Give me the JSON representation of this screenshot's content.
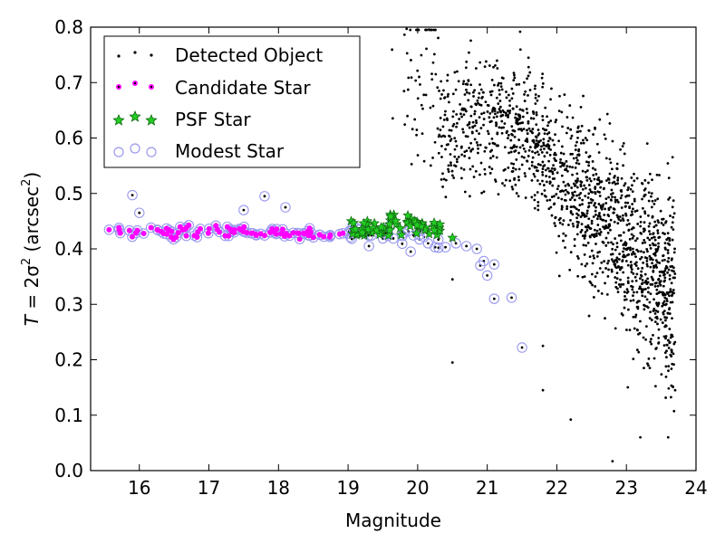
{
  "chart_data": {
    "type": "scatter",
    "xlabel": "Magnitude",
    "ylabel": "T = 2σ² (arcsec²)",
    "xlim": [
      15.3,
      24
    ],
    "ylim": [
      0.0,
      0.8
    ],
    "xticks": [
      16,
      17,
      18,
      19,
      20,
      21,
      22,
      23,
      24
    ],
    "yticks": [
      0.0,
      0.1,
      0.2,
      0.3,
      0.4,
      0.5,
      0.6,
      0.7,
      0.8
    ],
    "grid": false,
    "legend_position": "top-left",
    "series": [
      {
        "name": "Detected Object",
        "marker": "dot",
        "color": "#000000",
        "points_sample": [
          [
            15.6,
            0.435
          ],
          [
            15.9,
            0.497
          ],
          [
            16.2,
            0.43
          ],
          [
            17.5,
            0.47
          ],
          [
            17.8,
            0.495
          ],
          [
            19.3,
            0.405
          ],
          [
            19.9,
            0.395
          ],
          [
            20.5,
            0.345
          ],
          [
            20.5,
            0.195
          ],
          [
            20.9,
            0.37
          ],
          [
            21.1,
            0.31
          ],
          [
            21.3,
            0.312
          ],
          [
            21.5,
            0.222
          ],
          [
            21.8,
            0.145
          ],
          [
            22.2,
            0.092
          ],
          [
            22.8,
            0.017
          ],
          [
            23.2,
            0.06
          ],
          [
            23.3,
            0.59
          ],
          [
            23.6,
            0.06
          ],
          [
            23.7,
            0.145
          ]
        ]
      },
      {
        "name": "Candidate Star",
        "marker": "circle",
        "color": "#ff00ff",
        "points_sample": [
          [
            15.6,
            0.44
          ],
          [
            16.2,
            0.43
          ],
          [
            17.0,
            0.43
          ],
          [
            18.0,
            0.43
          ],
          [
            19.0,
            0.43
          ]
        ]
      },
      {
        "name": "PSF Star",
        "marker": "star",
        "color": "#22aa22",
        "points_sample": [
          [
            19.2,
            0.43
          ],
          [
            19.6,
            0.45
          ],
          [
            19.8,
            0.47
          ],
          [
            20.1,
            0.44
          ],
          [
            20.5,
            0.42
          ]
        ]
      },
      {
        "name": "Modest Star",
        "marker": "open-circle",
        "color": "#9999ee",
        "points_sample": [
          [
            15.6,
            0.44
          ],
          [
            17.5,
            0.43
          ],
          [
            19.9,
            0.395
          ],
          [
            20.9,
            0.37
          ],
          [
            21.5,
            0.222
          ]
        ]
      }
    ]
  },
  "legend": {
    "detected": "Detected Object",
    "candidate": "Candidate Star",
    "psf": "PSF Star",
    "modest": "Modest Star"
  },
  "axes": {
    "xlabel": "Magnitude",
    "ylabel_T": "T",
    "ylabel_eq": " = 2σ",
    "ylabel_sup": "2",
    "ylabel_unit": " (arcsec",
    "ylabel_unit_sup": "2",
    "ylabel_close": ")"
  }
}
